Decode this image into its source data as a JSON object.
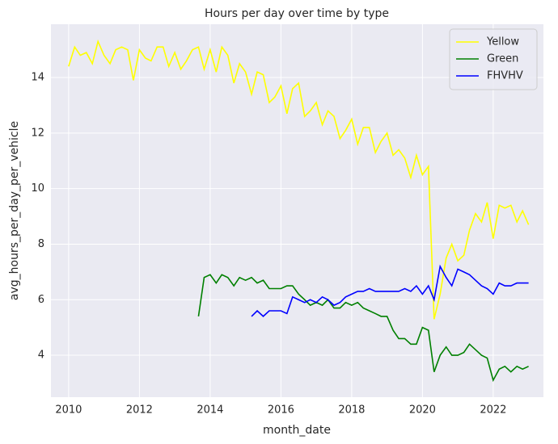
{
  "chart_data": {
    "type": "line",
    "title": "Hours per day over time by type",
    "x_label": "month_date",
    "y_label": "avg_hours_per_day_per_vehicle",
    "x": [
      2010.0,
      2010.17,
      2010.33,
      2010.5,
      2010.67,
      2010.83,
      2011.0,
      2011.17,
      2011.33,
      2011.5,
      2011.67,
      2011.83,
      2012.0,
      2012.17,
      2012.33,
      2012.5,
      2012.67,
      2012.83,
      2013.0,
      2013.17,
      2013.33,
      2013.5,
      2013.67,
      2013.83,
      2014.0,
      2014.17,
      2014.33,
      2014.5,
      2014.67,
      2014.83,
      2015.0,
      2015.17,
      2015.33,
      2015.5,
      2015.67,
      2015.83,
      2016.0,
      2016.17,
      2016.33,
      2016.5,
      2016.67,
      2016.83,
      2017.0,
      2017.17,
      2017.33,
      2017.5,
      2017.67,
      2017.83,
      2018.0,
      2018.17,
      2018.33,
      2018.5,
      2018.67,
      2018.83,
      2019.0,
      2019.17,
      2019.33,
      2019.5,
      2019.67,
      2019.83,
      2020.0,
      2020.17,
      2020.33,
      2020.5,
      2020.67,
      2020.83,
      2021.0,
      2021.17,
      2021.33,
      2021.5,
      2021.67,
      2021.83,
      2022.0,
      2022.17,
      2022.33,
      2022.5,
      2022.67,
      2022.83,
      2023.0
    ],
    "series": [
      {
        "name": "Yellow",
        "color": "#ffff00",
        "values": [
          14.4,
          15.1,
          14.8,
          14.9,
          14.5,
          15.3,
          14.8,
          14.5,
          15.0,
          15.1,
          15.0,
          13.9,
          15.0,
          14.7,
          14.6,
          15.1,
          15.1,
          14.4,
          14.9,
          14.3,
          14.6,
          15.0,
          15.1,
          14.3,
          15.0,
          14.2,
          15.1,
          14.8,
          13.8,
          14.5,
          14.2,
          13.4,
          14.2,
          14.1,
          13.1,
          13.3,
          13.7,
          12.7,
          13.6,
          13.8,
          12.6,
          12.8,
          13.1,
          12.3,
          12.8,
          12.6,
          11.8,
          12.1,
          12.5,
          11.6,
          12.2,
          12.2,
          11.3,
          11.7,
          12.0,
          11.2,
          11.4,
          11.1,
          10.4,
          11.2,
          10.5,
          10.8,
          5.3,
          6.2,
          7.5,
          8.0,
          7.4,
          7.6,
          8.5,
          9.1,
          8.8,
          9.5,
          8.2,
          9.4,
          9.3,
          9.4,
          8.8,
          9.2,
          8.7
        ]
      },
      {
        "name": "Green",
        "color": "#008000",
        "values": [
          null,
          null,
          null,
          null,
          null,
          null,
          null,
          null,
          null,
          null,
          null,
          null,
          null,
          null,
          null,
          null,
          null,
          null,
          null,
          null,
          null,
          null,
          5.4,
          6.8,
          6.9,
          6.6,
          6.9,
          6.8,
          6.5,
          6.8,
          6.7,
          6.8,
          6.6,
          6.7,
          6.4,
          6.4,
          6.4,
          6.5,
          6.5,
          6.2,
          6.0,
          5.8,
          5.9,
          5.8,
          6.0,
          5.7,
          5.7,
          5.9,
          5.8,
          5.9,
          5.7,
          5.6,
          5.5,
          5.4,
          5.4,
          4.9,
          4.6,
          4.6,
          4.4,
          4.4,
          5.0,
          4.9,
          3.4,
          4.0,
          4.3,
          4.0,
          4.0,
          4.1,
          4.4,
          4.2,
          4.0,
          3.9,
          3.1,
          3.5,
          3.6,
          3.4,
          3.6,
          3.5,
          3.6
        ]
      },
      {
        "name": "FHVHV",
        "color": "#0000ff",
        "values": [
          null,
          null,
          null,
          null,
          null,
          null,
          null,
          null,
          null,
          null,
          null,
          null,
          null,
          null,
          null,
          null,
          null,
          null,
          null,
          null,
          null,
          null,
          null,
          null,
          null,
          null,
          null,
          null,
          null,
          null,
          null,
          5.4,
          5.6,
          5.4,
          5.6,
          5.6,
          5.6,
          5.5,
          6.1,
          6.0,
          5.9,
          6.0,
          5.9,
          6.1,
          6.0,
          5.8,
          5.9,
          6.1,
          6.2,
          6.3,
          6.3,
          6.4,
          6.3,
          6.3,
          6.3,
          6.3,
          6.3,
          6.4,
          6.3,
          6.5,
          6.2,
          6.5,
          6.0,
          7.2,
          6.8,
          6.5,
          7.1,
          7.0,
          6.9,
          6.7,
          6.5,
          6.4,
          6.2,
          6.6,
          6.5,
          6.5,
          6.6,
          6.6,
          6.6
        ]
      }
    ],
    "xlim": [
      2009.5,
      2023.42
    ],
    "xticks": [
      2010,
      2012,
      2014,
      2016,
      2018,
      2020,
      2022
    ],
    "ylim": [
      2.49,
      15.92
    ],
    "yticks": [
      4,
      6,
      8,
      10,
      12,
      14
    ],
    "grid": true,
    "legend": "upper right"
  }
}
